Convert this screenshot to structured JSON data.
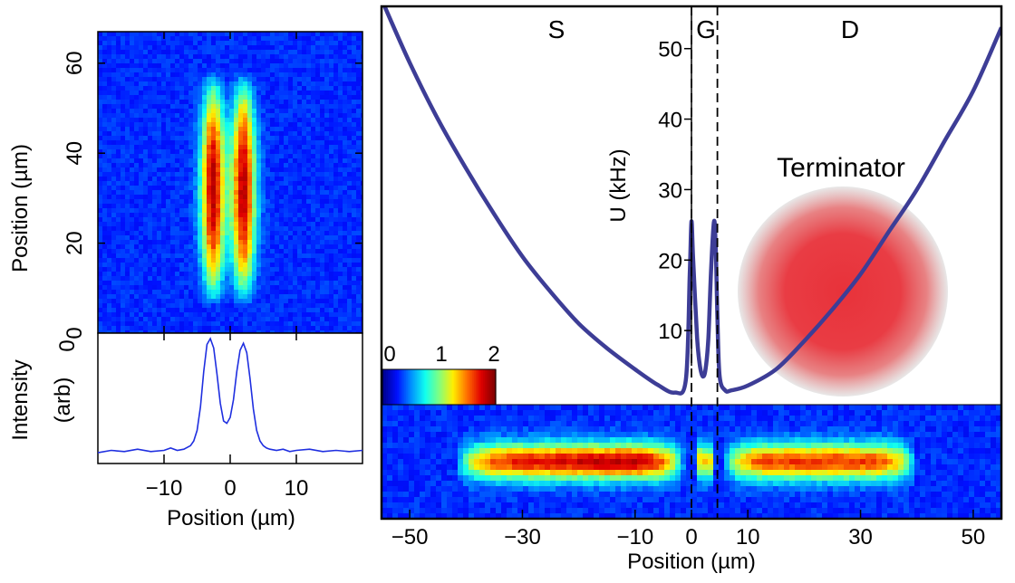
{
  "colors": {
    "potential_line": "#3d3d96",
    "profile_line": "#1f2fe0",
    "terminator_core": "#e8323a",
    "frame": "#000000",
    "colormap": [
      "#00008f",
      "#0010ff",
      "#0090ff",
      "#10ffef",
      "#80ff80",
      "#ffef00",
      "#ff7000",
      "#e00000",
      "#800000"
    ]
  },
  "chart_data": [
    {
      "type": "heatmap",
      "panel": "top-left absorption image",
      "xlabel": "",
      "ylabel": "Position (µm)",
      "xlim": [
        -20,
        20
      ],
      "ylim": [
        0,
        67
      ],
      "yticks": [
        0,
        20,
        40,
        60
      ],
      "yticklabels": [
        "0",
        "20",
        "40",
        "60"
      ],
      "clouds": [
        {
          "x_center": -2.6,
          "y_center": 32,
          "x_sigma": 1.3,
          "y_extent": [
            6,
            58
          ]
        },
        {
          "x_center": 2.0,
          "y_center": 32,
          "x_sigma": 1.3,
          "y_extent": [
            6,
            58
          ]
        }
      ]
    },
    {
      "type": "line",
      "panel": "bottom-left intensity profile",
      "xlabel": "Position (µm)",
      "ylabel_lines": [
        "Intensity",
        "(arb)"
      ],
      "xlim": [
        -20,
        20
      ],
      "xticks": [
        -10,
        0,
        10
      ],
      "xticklabels": [
        "-10",
        "0",
        "10"
      ],
      "top_label": "0",
      "series": [
        {
          "x": [
            -20,
            -18,
            -16,
            -14,
            -12,
            -10,
            -9,
            -8,
            -7,
            -6,
            -5.5,
            -5,
            -4.5,
            -4,
            -3.5,
            -3,
            -2.5,
            -2,
            -1.5,
            -1,
            -0.5,
            0,
            0.5,
            1,
            1.5,
            2,
            2.5,
            3,
            3.5,
            4,
            4.5,
            5,
            5.5,
            6,
            7,
            8,
            9,
            10,
            12,
            14,
            16,
            18,
            20
          ],
          "y": [
            0.03,
            0.05,
            0.04,
            0.06,
            0.04,
            0.05,
            0.07,
            0.05,
            0.06,
            0.09,
            0.13,
            0.22,
            0.42,
            0.72,
            0.95,
            1.0,
            0.92,
            0.7,
            0.45,
            0.3,
            0.28,
            0.33,
            0.48,
            0.72,
            0.9,
            0.96,
            0.88,
            0.66,
            0.4,
            0.22,
            0.13,
            0.09,
            0.07,
            0.06,
            0.05,
            0.06,
            0.04,
            0.05,
            0.06,
            0.04,
            0.05,
            0.04,
            0.05
          ]
        }
      ]
    },
    {
      "type": "line",
      "panel": "right potential",
      "ylabel": "U (kHz)",
      "yticks": [
        10,
        20,
        30,
        40,
        50
      ],
      "yticklabels": [
        "10",
        "20",
        "30",
        "40",
        "50"
      ],
      "ylim": [
        0,
        56
      ],
      "xlim": [
        -55,
        55
      ],
      "region_labels": [
        "S",
        "G",
        "D"
      ],
      "series": [
        {
          "x": [
            -55,
            -50,
            -45,
            -40,
            -35,
            -30,
            -25,
            -20,
            -15,
            -10,
            -6,
            -3,
            -1,
            -0.3,
            0,
            0.3,
            1,
            1.5,
            2,
            2.5,
            3,
            3.5,
            4,
            4.3,
            4.6,
            5,
            6,
            7,
            10,
            15,
            20,
            25,
            30,
            35,
            40,
            45,
            50,
            55
          ],
          "y": [
            57,
            48,
            40,
            33,
            26.5,
            20.5,
            15.5,
            11,
            7.5,
            4.5,
            2.3,
            1.2,
            3,
            18,
            25.5,
            20,
            9,
            5,
            3.5,
            4.5,
            9,
            19,
            25.5,
            22,
            12,
            3.5,
            1.5,
            1.5,
            2.2,
            4.5,
            8.5,
            13,
            18,
            24,
            30,
            37,
            44,
            53
          ]
        }
      ],
      "dashed_lines_x": [
        0,
        4.6
      ],
      "annotation": {
        "label": "Terminator",
        "x_center": 27,
        "u_center": 12.5
      }
    },
    {
      "type": "heatmap",
      "panel": "bottom-right image",
      "xlabel": "Position (µm)",
      "xlim": [
        -55,
        55
      ],
      "xticks": [
        -50,
        -30,
        -10,
        0,
        10,
        30,
        50
      ],
      "xticklabels": [
        "-50",
        "-30",
        "-10",
        "0",
        "10",
        "30",
        "50"
      ],
      "segments": [
        {
          "x_from": -42,
          "x_to": -1,
          "peak": 2.0
        },
        {
          "x_from": 0.5,
          "x_to": 4,
          "peak": 1.2
        },
        {
          "x_from": 5.5,
          "x_to": 40,
          "peak": 1.6
        }
      ]
    },
    {
      "type": "colorbar",
      "ticklabels": [
        "0",
        "1",
        "2"
      ],
      "range": [
        0,
        2
      ]
    }
  ]
}
